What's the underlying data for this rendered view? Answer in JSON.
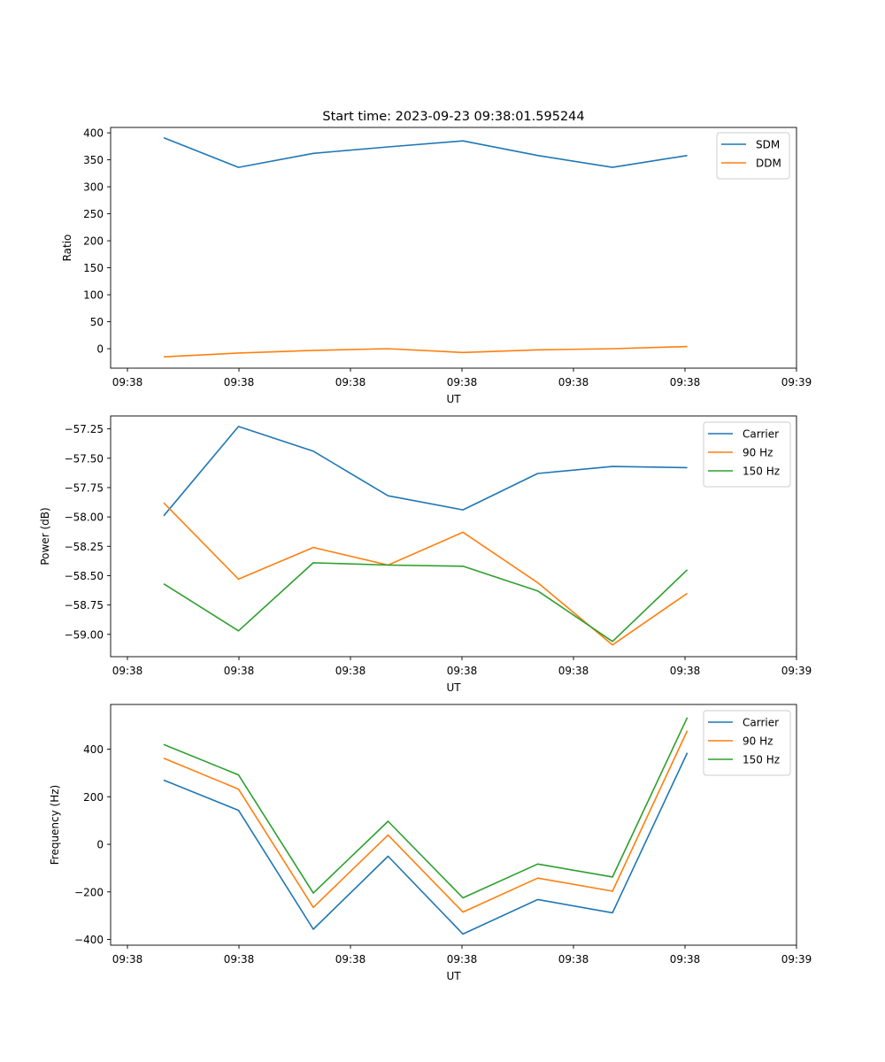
{
  "figure_title": "Start time: 2023-09-23 09:38:01.595244",
  "chart_data": [
    {
      "type": "line",
      "title": "Start time: 2023-09-23 09:38:01.595244",
      "xlabel": "UT",
      "ylabel": "Ratio",
      "x_ticks": [
        "09:38",
        "09:38",
        "09:38",
        "09:38",
        "09:38",
        "09:38",
        "09:39"
      ],
      "x_points": 8,
      "xlim": [
        -0.71,
        8.46
      ],
      "ylim": [
        -36,
        410
      ],
      "y_ticks": [
        "400",
        "350",
        "300",
        "250",
        "200",
        "150",
        "100",
        "50",
        "0"
      ],
      "y_tick_values": [
        400,
        350,
        300,
        250,
        200,
        150,
        100,
        50,
        0
      ],
      "series": [
        {
          "name": "SDM",
          "color": "#1f77b4",
          "values": [
            391,
            336,
            362,
            374,
            385,
            358,
            336,
            358
          ]
        },
        {
          "name": "DDM",
          "color": "#ff7f0e",
          "values": [
            -15,
            -8,
            -3,
            0,
            -7,
            -2,
            0,
            4
          ]
        }
      ]
    },
    {
      "type": "line",
      "xlabel": "UT",
      "ylabel": "Power (dB)",
      "x_ticks": [
        "09:38",
        "09:38",
        "09:38",
        "09:38",
        "09:38",
        "09:38",
        "09:39"
      ],
      "x_points": 8,
      "xlim": [
        -0.71,
        8.46
      ],
      "ylim": [
        -59.19,
        -57.14
      ],
      "y_ticks": [
        "−57.25",
        "−57.50",
        "−57.75",
        "−58.00",
        "−58.25",
        "−58.50",
        "−58.75",
        "−59.00"
      ],
      "y_tick_values": [
        -57.25,
        -57.5,
        -57.75,
        -58.0,
        -58.25,
        -58.5,
        -58.75,
        -59.0
      ],
      "series": [
        {
          "name": "Carrier",
          "color": "#1f77b4",
          "values": [
            -57.99,
            -57.23,
            -57.44,
            -57.82,
            -57.94,
            -57.63,
            -57.57,
            -57.58
          ]
        },
        {
          "name": "90 Hz",
          "color": "#ff7f0e",
          "values": [
            -57.88,
            -58.53,
            -58.26,
            -58.41,
            -58.13,
            -58.56,
            -59.09,
            -58.65
          ]
        },
        {
          "name": "150 Hz",
          "color": "#2ca02c",
          "values": [
            -58.57,
            -58.97,
            -58.39,
            -58.41,
            -58.42,
            -58.63,
            -59.06,
            -58.45
          ]
        }
      ]
    },
    {
      "type": "line",
      "xlabel": "UT",
      "ylabel": "Frequency (Hz)",
      "x_ticks": [
        "09:38",
        "09:38",
        "09:38",
        "09:38",
        "09:38",
        "09:38",
        "09:39"
      ],
      "x_points": 8,
      "xlim": [
        -0.71,
        8.46
      ],
      "ylim": [
        -424,
        588
      ],
      "y_ticks": [
        "400",
        "200",
        "0",
        "−200",
        "−400"
      ],
      "y_tick_values": [
        400,
        200,
        0,
        -200,
        -400
      ],
      "series": [
        {
          "name": "Carrier",
          "color": "#1f77b4",
          "values": [
            270,
            143,
            -357,
            -50,
            -377,
            -232,
            -288,
            385
          ]
        },
        {
          "name": "90 Hz",
          "color": "#ff7f0e",
          "values": [
            362,
            232,
            -265,
            39,
            -285,
            -142,
            -197,
            478
          ]
        },
        {
          "name": "150 Hz",
          "color": "#2ca02c",
          "values": [
            420,
            292,
            -205,
            97,
            -225,
            -83,
            -137,
            533
          ]
        }
      ]
    }
  ]
}
